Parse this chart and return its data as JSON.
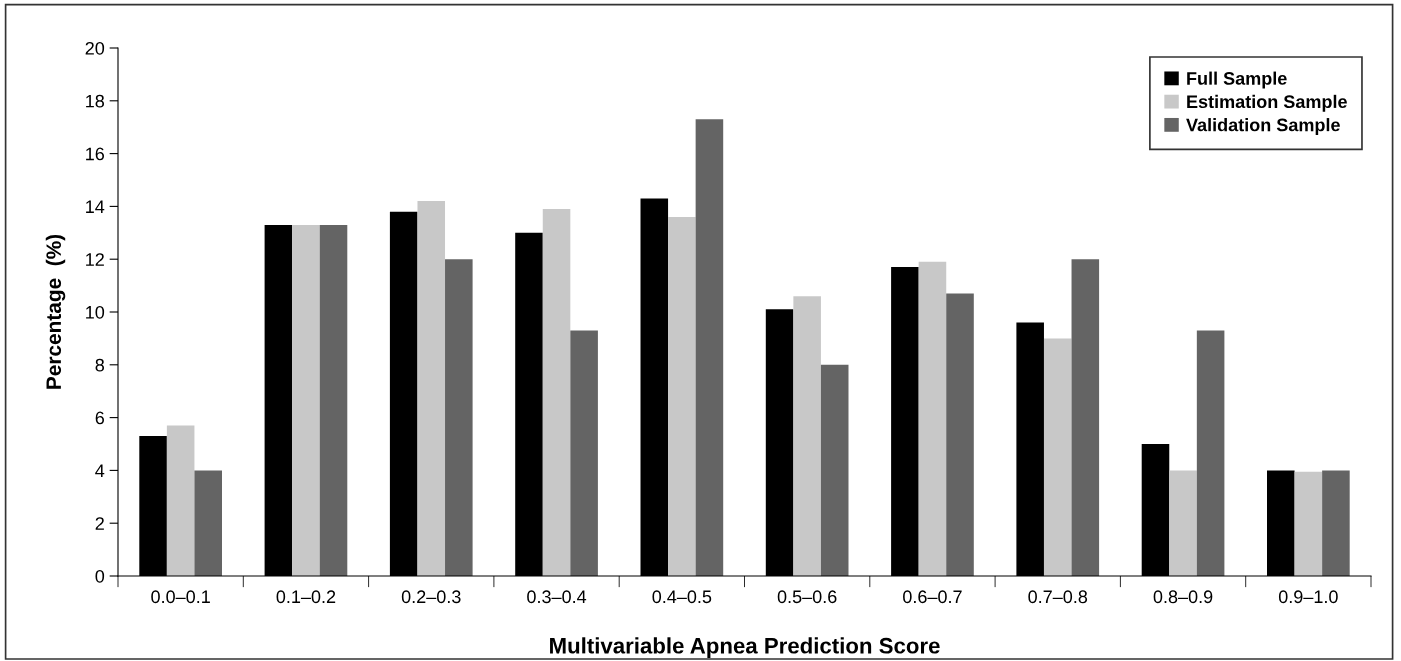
{
  "chart_data": {
    "type": "bar",
    "xlabel": "Multivariable Apnea Prediction Score",
    "ylabel": "Percentage  (%)",
    "categories": [
      "0.0–0.1",
      "0.1–0.2",
      "0.2–0.3",
      "0.3–0.4",
      "0.4–0.5",
      "0.5–0.6",
      "0.6–0.7",
      "0.7–0.8",
      "0.8–0.9",
      "0.9–1.0"
    ],
    "series": [
      {
        "name": "Full Sample",
        "color": "#000000",
        "values": [
          5.3,
          13.3,
          13.8,
          13.0,
          14.3,
          10.1,
          11.7,
          9.6,
          5.0,
          4.0
        ]
      },
      {
        "name": "Estimation Sample",
        "color": "#c8c8c8",
        "values": [
          5.7,
          13.3,
          14.2,
          13.9,
          13.6,
          10.6,
          11.9,
          9.0,
          4.0,
          3.95
        ]
      },
      {
        "name": "Validation Sample",
        "color": "#646464",
        "values": [
          4.0,
          13.3,
          12.0,
          9.3,
          17.3,
          8.0,
          10.7,
          12.0,
          9.3,
          4.0
        ]
      }
    ],
    "ylim": [
      0,
      20
    ],
    "yticks": [
      0,
      2,
      4,
      6,
      8,
      10,
      12,
      14,
      16,
      18,
      20
    ],
    "grid": false,
    "legend": "top right"
  }
}
